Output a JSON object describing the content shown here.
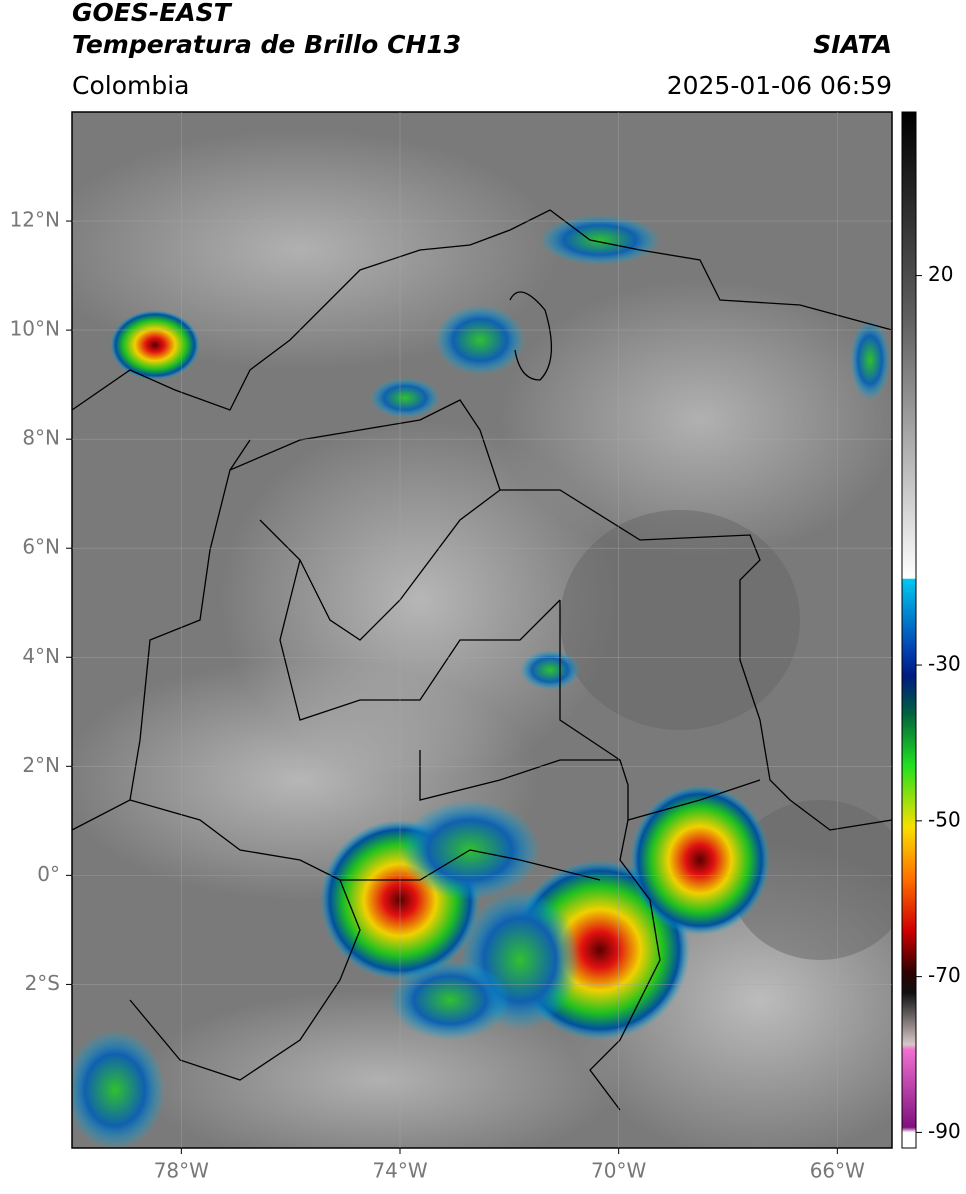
{
  "header": {
    "title": "GOES-EAST",
    "subtitle": "Temperatura de Brillo CH13",
    "region": "Colombia",
    "source": "SIATA",
    "datetime": "2025-01-06 06:59"
  },
  "map": {
    "xlim": [
      -80,
      -65
    ],
    "ylim": [
      -5,
      14
    ],
    "xticks": [
      {
        "value": -78,
        "label": "78°W"
      },
      {
        "value": -74,
        "label": "74°W"
      },
      {
        "value": -70,
        "label": "70°W"
      },
      {
        "value": -66,
        "label": "66°W"
      }
    ],
    "yticks": [
      {
        "value": 12,
        "label": "12°N"
      },
      {
        "value": 10,
        "label": "10°N"
      },
      {
        "value": 8,
        "label": "8°N"
      },
      {
        "value": 6,
        "label": "6°N"
      },
      {
        "value": 4,
        "label": "4°N"
      },
      {
        "value": 2,
        "label": "2°N"
      },
      {
        "value": 0,
        "label": "0°"
      },
      {
        "value": -2,
        "label": "2°S"
      }
    ],
    "grid": true
  },
  "colorbar": {
    "lim": [
      -92,
      41
    ],
    "ticks": [
      20,
      -30,
      -50,
      -70,
      -90
    ]
  }
}
